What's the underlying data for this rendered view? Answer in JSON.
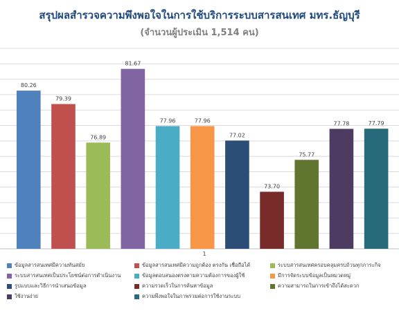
{
  "chart_data": {
    "type": "bar",
    "title": "สรุปผลสำรวจความพึงพอใจในการใช้บริการระบบสารสนเทศ มทร.ธัญบุรี",
    "subtitle": "(จำนวนผู้ประเมิน 1,514 คน)",
    "categories": [
      "1"
    ],
    "ylim": [
      70,
      83
    ],
    "grid": true,
    "legend_position": "bottom",
    "series": [
      {
        "name": "ข้อมูลสารสนเทศมีความทันสมัย",
        "value": 80.26,
        "label": "80.26",
        "color": "#4f81bd"
      },
      {
        "name": "ข้อมูลสารสนเทศมีความถูกต้อง ตรงกัน เชื่อถือได้",
        "value": 79.39,
        "label": "79.39",
        "color": "#c0504d"
      },
      {
        "name": "ระบบสารสนเทศครอบคลุมครบถ้วนทุกภาระกิจ",
        "value": 76.89,
        "label": "76.89",
        "color": "#9bbb59"
      },
      {
        "name": "ระบบสารสนเทศเป็นประโยชน์ต่อการดำเนินงาน",
        "value": 81.67,
        "label": "81.67",
        "color": "#8064a2"
      },
      {
        "name": "ข้อมูลตอบสนองตรงตามความต้องการของผู้ใช้",
        "value": 77.96,
        "label": "77.96",
        "color": "#4bacc6"
      },
      {
        "name": "มีการจัดระบบข้อมูลเป็นหมวดหมู่",
        "value": 77.96,
        "label": "77.96",
        "color": "#f79646"
      },
      {
        "name": "รูปแบบและวิธีการนำเสนอข้อมูล",
        "value": 77.02,
        "label": "77.02",
        "color": "#2c4d75"
      },
      {
        "name": "ความรวดเร็วในการค้นหาข้อมูล",
        "value": 73.7,
        "label": "73.70",
        "color": "#772c2a"
      },
      {
        "name": "ความสามารถในการเข้าถึงได้สะดวก",
        "value": 75.77,
        "label": "75.77",
        "color": "#5f7530"
      },
      {
        "name": "ใช้งานง่าย",
        "value": 77.78,
        "label": "77.78",
        "color": "#4d3b62"
      },
      {
        "name": "ความพึงพอใจในภาพรวมต่อการใช้งานระบบ",
        "value": 77.79,
        "label": "77.79",
        "color": "#276a7c"
      }
    ]
  }
}
